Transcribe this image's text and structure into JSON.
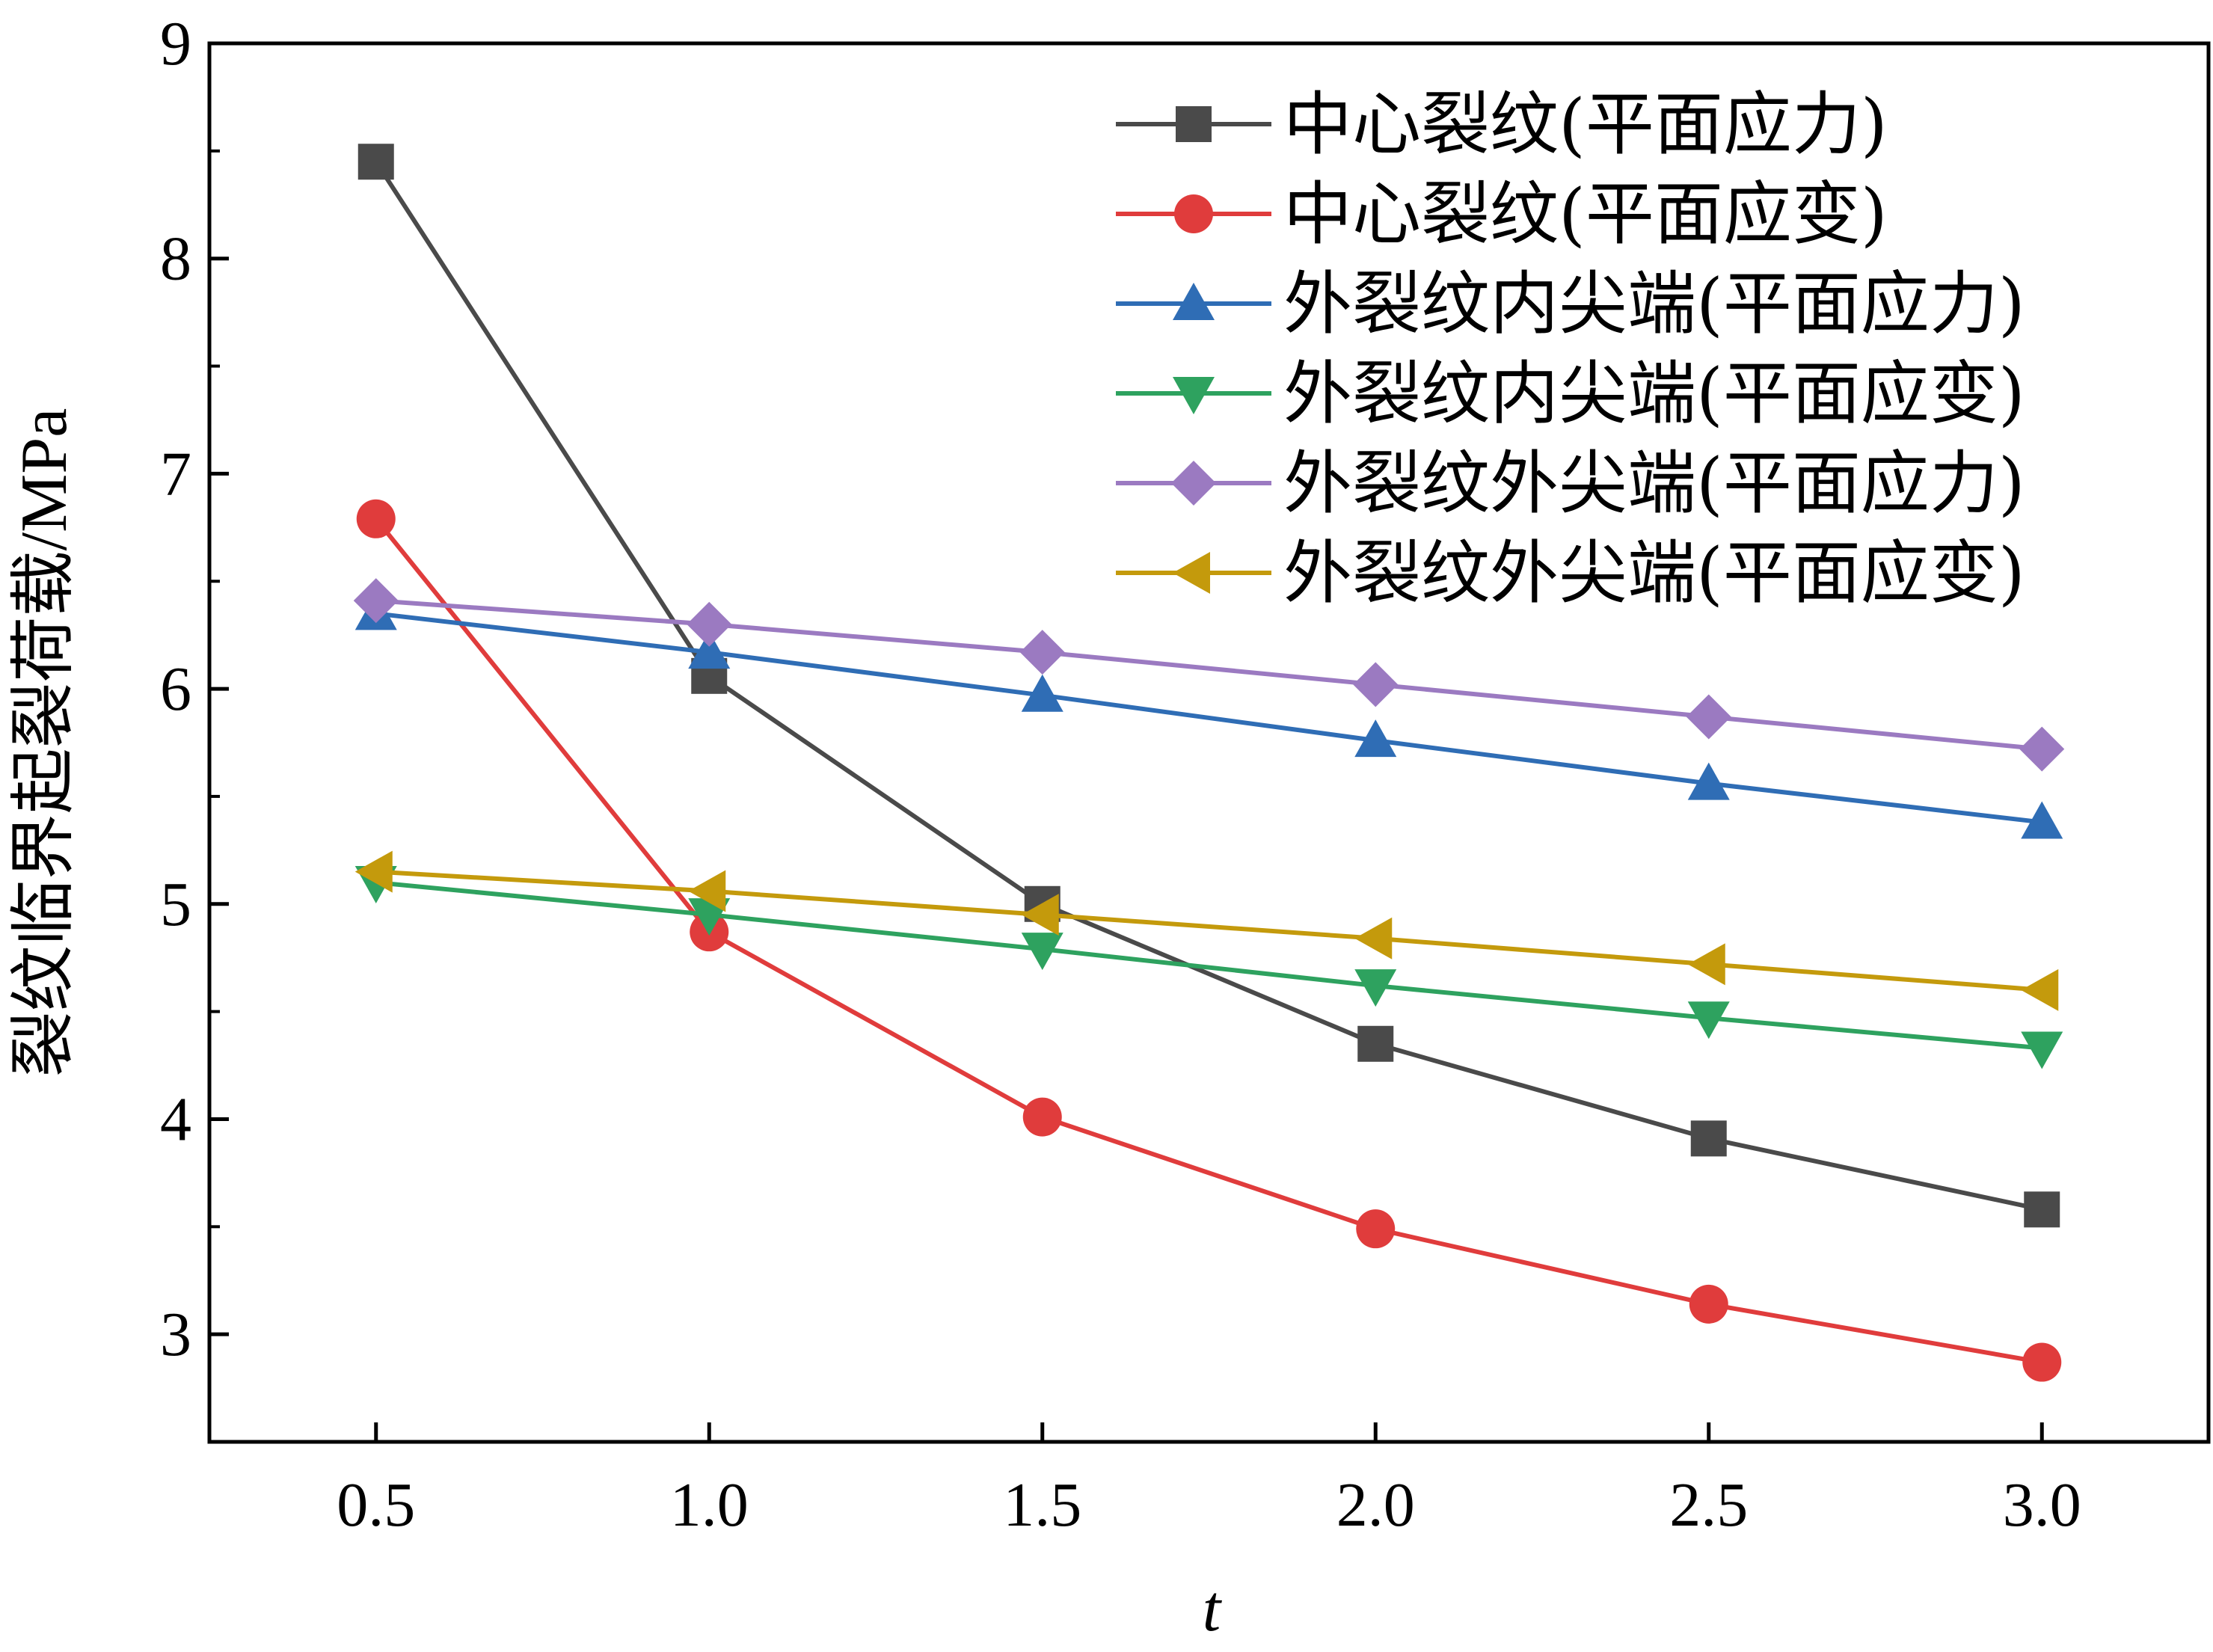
{
  "chart_data": {
    "type": "line",
    "title": "",
    "xlabel": "t",
    "ylabel": "裂纹临界起裂荷载/MPa",
    "x": [
      0.5,
      1.0,
      1.5,
      2.0,
      2.5,
      3.0
    ],
    "x_tick_labels": [
      "0.5",
      "1.0",
      "1.5",
      "2.0",
      "2.5",
      "3.0"
    ],
    "xlim": [
      0.25,
      3.25
    ],
    "ylim": [
      2.5,
      9
    ],
    "y_ticks": [
      3,
      4,
      5,
      6,
      7,
      8,
      9
    ],
    "y_tick_labels": [
      "3",
      "4",
      "5",
      "6",
      "7",
      "8",
      "9"
    ],
    "grid": false,
    "legend_position": "top-right",
    "series": [
      {
        "name": "中心裂纹(平面应力)",
        "color": "#4a4a4a",
        "marker": "square",
        "values": [
          8.45,
          6.06,
          5.0,
          4.35,
          3.91,
          3.58
        ]
      },
      {
        "name": "中心裂纹(平面应变)",
        "color": "#e03c3c",
        "marker": "circle",
        "values": [
          6.79,
          4.87,
          4.01,
          3.49,
          3.14,
          2.87
        ]
      },
      {
        "name": "外裂纹内尖端(平面应力)",
        "color": "#2f6db5",
        "marker": "triangle-up",
        "values": [
          6.35,
          6.17,
          5.97,
          5.76,
          5.56,
          5.38
        ]
      },
      {
        "name": "外裂纹内尖端(平面应变)",
        "color": "#2ea25f",
        "marker": "triangle-down",
        "values": [
          5.1,
          4.95,
          4.79,
          4.62,
          4.47,
          4.33
        ]
      },
      {
        "name": "外裂纹外尖端(平面应力)",
        "color": "#9b7ac1",
        "marker": "diamond",
        "values": [
          6.41,
          6.3,
          6.17,
          6.02,
          5.87,
          5.72
        ]
      },
      {
        "name": "外裂纹外尖端(平面应变)",
        "color": "#c49a0c",
        "marker": "triangle-left",
        "values": [
          5.15,
          5.06,
          4.95,
          4.84,
          4.72,
          4.6
        ]
      }
    ]
  }
}
